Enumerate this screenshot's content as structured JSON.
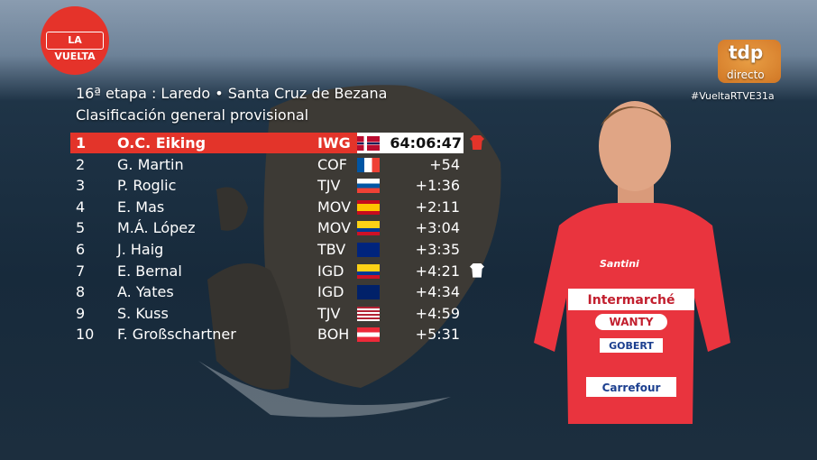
{
  "logo": "LA VUELTA",
  "channel": {
    "name": "tdp",
    "live": "directo",
    "hashtag": "#VueltaRTVE31a"
  },
  "header": {
    "title": "16ª etapa : Laredo • Santa Cruz de Bezana",
    "subtitle": "Clasificación general provisional"
  },
  "table": {
    "rows": [
      {
        "rank": "1",
        "name": "O.C. Eiking",
        "team": "IWG",
        "time": "64:06:47"
      },
      {
        "rank": "2",
        "name": "G. Martin",
        "team": "COF",
        "time": "+54"
      },
      {
        "rank": "3",
        "name": "P. Roglic",
        "team": "TJV",
        "time": "+1:36"
      },
      {
        "rank": "4",
        "name": "E. Mas",
        "team": "MOV",
        "time": "+2:11"
      },
      {
        "rank": "5",
        "name": "M.Á. López",
        "team": "MOV",
        "time": "+3:04"
      },
      {
        "rank": "6",
        "name": "J. Haig",
        "team": "TBV",
        "time": "+3:35"
      },
      {
        "rank": "7",
        "name": "E. Bernal",
        "team": "IGD",
        "time": "+4:21"
      },
      {
        "rank": "8",
        "name": "A. Yates",
        "team": "IGD",
        "time": "+4:34"
      },
      {
        "rank": "9",
        "name": "S. Kuss",
        "team": "TJV",
        "time": "+4:59"
      },
      {
        "rank": "10",
        "name": "F. Großschartner",
        "team": "BOH",
        "time": "+5:31"
      }
    ]
  },
  "rider_jersey": [
    "Santini",
    "Intermarché",
    "WANTY",
    "GOBERT",
    "Carrefour"
  ]
}
